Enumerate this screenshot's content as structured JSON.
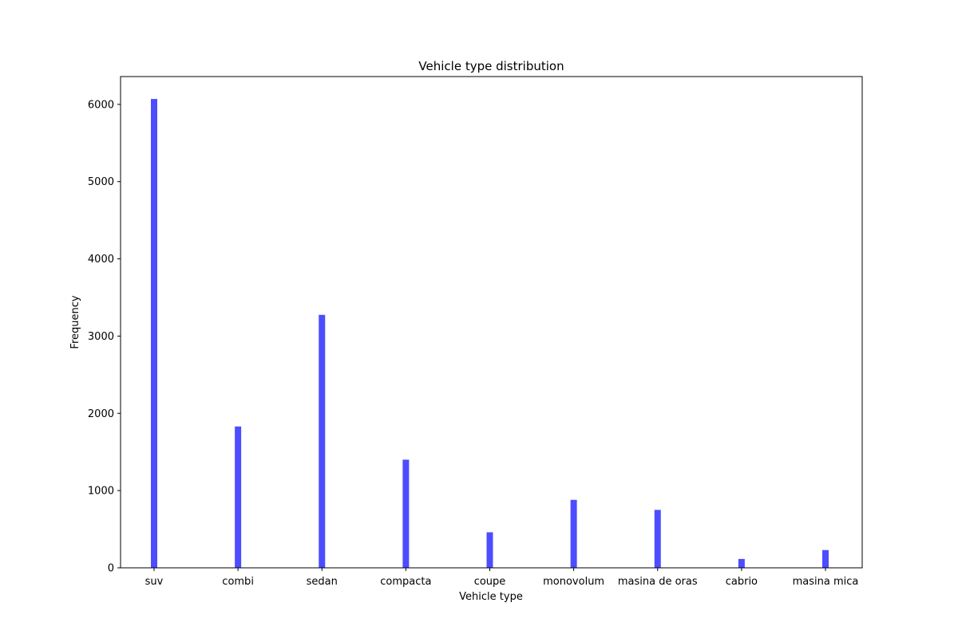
{
  "chart_data": {
    "type": "bar",
    "title": "Vehicle type distribution",
    "xlabel": "Vehicle type",
    "ylabel": "Frequency",
    "categories": [
      "suv",
      "combi",
      "sedan",
      "compacta",
      "coupe",
      "monovolum",
      "masina de oras",
      "cabrio",
      "masina mica"
    ],
    "values": [
      6070,
      1830,
      3275,
      1400,
      460,
      880,
      750,
      115,
      230
    ],
    "ylim": [
      0,
      6360
    ],
    "yticks": [
      0,
      1000,
      2000,
      3000,
      4000,
      5000,
      6000
    ],
    "grid": false,
    "bar_color": "#4d4dff"
  }
}
